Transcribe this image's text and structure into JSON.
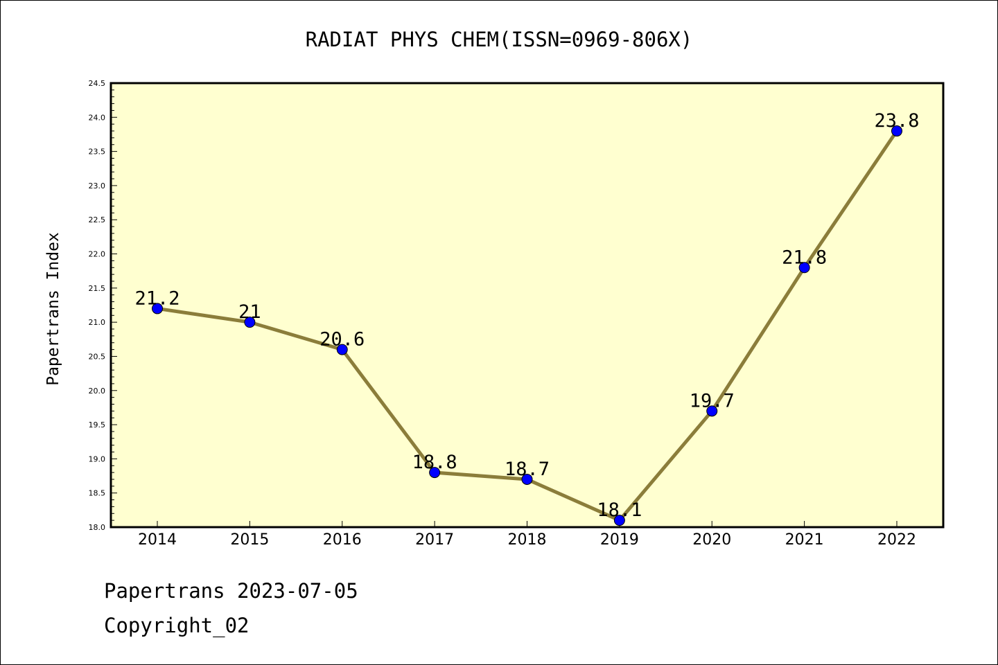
{
  "chart_data": {
    "type": "line",
    "title": "RADIAT PHYS CHEM(ISSN=0969-806X)",
    "xlabel": "",
    "ylabel": "Papertrans Index",
    "categories": [
      "2014",
      "2015",
      "2016",
      "2017",
      "2018",
      "2019",
      "2020",
      "2021",
      "2022"
    ],
    "series": [
      {
        "values": [
          21.2,
          21.0,
          20.6,
          18.8,
          18.7,
          18.1,
          19.7,
          21.8,
          23.8
        ],
        "labels": [
          "21.2",
          "21",
          "20.6",
          "18.8",
          "18.7",
          "18.1",
          "19.7",
          "21.8",
          "23.8"
        ]
      }
    ],
    "ylim": [
      18.0,
      24.5
    ],
    "yticks": [
      "18.0",
      "18.5",
      "19.0",
      "19.5",
      "20.0",
      "20.5",
      "21.0",
      "21.5",
      "22.0",
      "22.5",
      "23.0",
      "23.5",
      "24.0",
      "24.5"
    ],
    "grid": false,
    "colors": {
      "plot_background": "#ffffd0",
      "line": "#8b7d3a",
      "marker": "#0000ff"
    }
  },
  "footer": {
    "line1": "Papertrans 2023-07-05",
    "line2": "Copyright_02"
  }
}
